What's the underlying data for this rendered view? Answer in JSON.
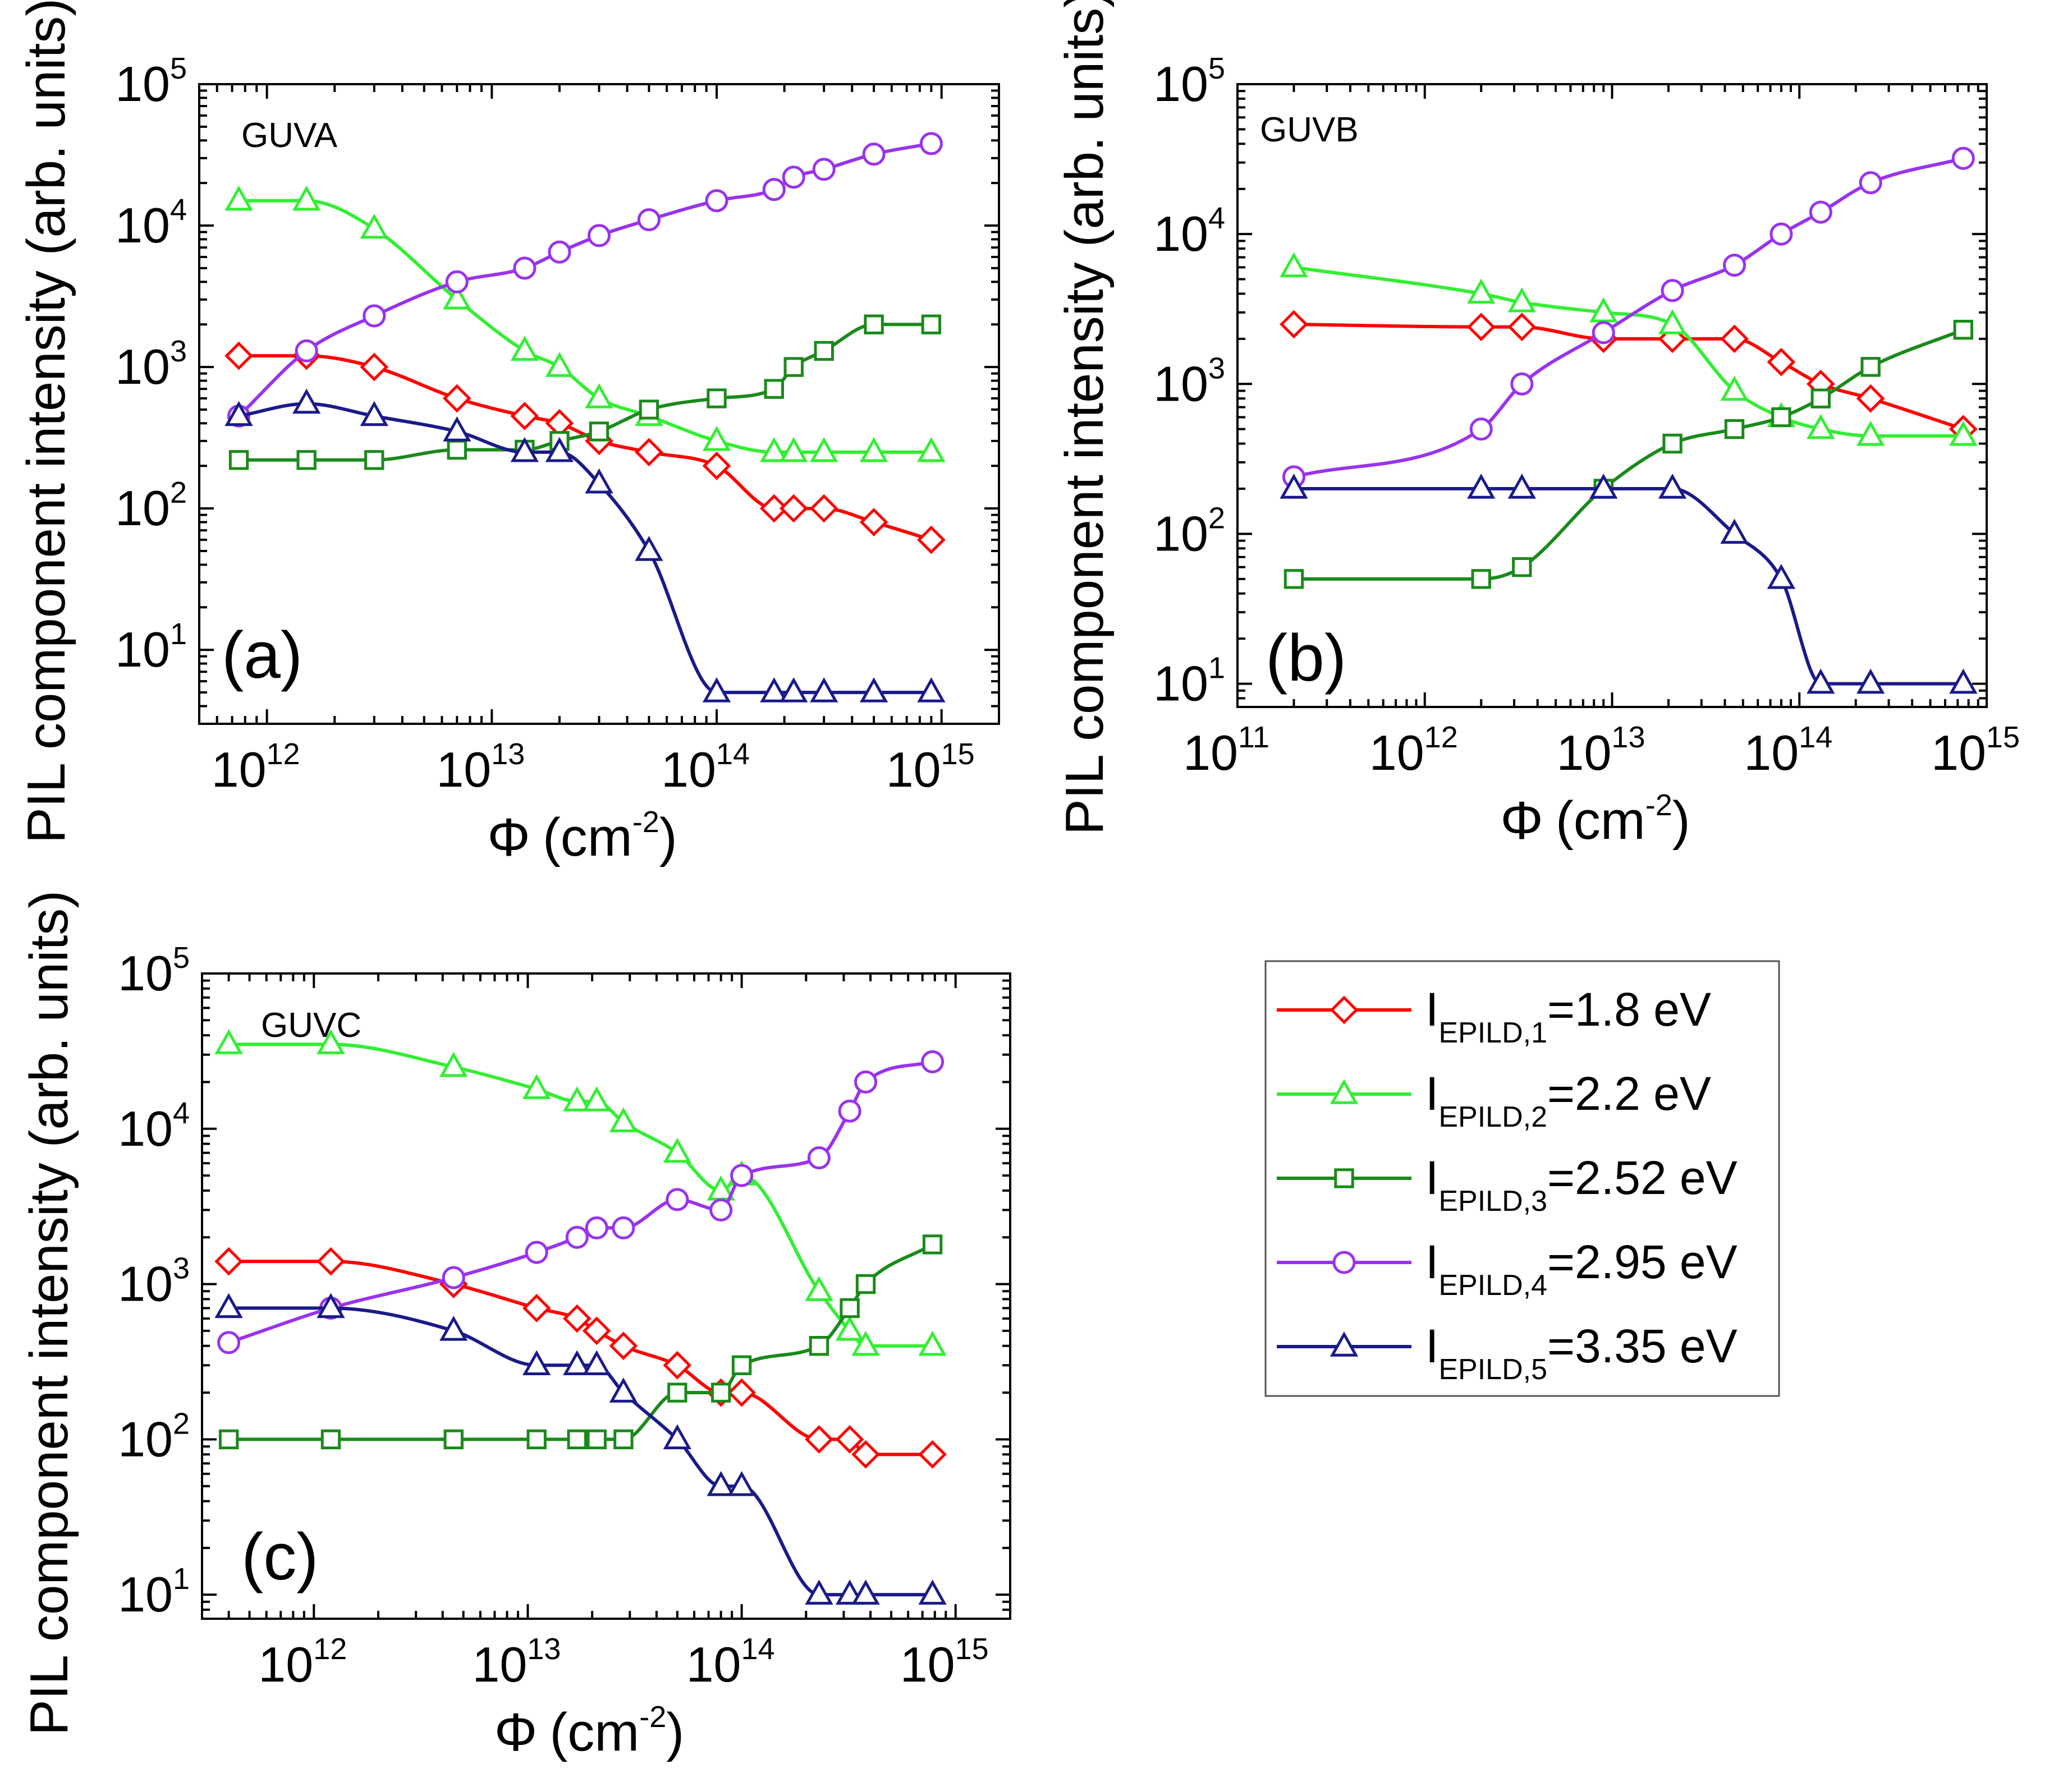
{
  "figure": {
    "y_axis_label": "PIL component intensity (arb. units)",
    "x_axis_symbol": "Φ",
    "x_axis_unit_base": "(cm",
    "x_axis_unit_exp": "-2",
    "x_axis_unit_close": ")"
  },
  "legend": {
    "items": [
      {
        "name": "I",
        "sub": "EPILD,1",
        "value": "=1.8 eV",
        "color": "#ff0000",
        "marker": "diamond"
      },
      {
        "name": "I",
        "sub": "EPILD,2",
        "value": "=2.2 eV",
        "color": "#33ee33",
        "marker": "triangle"
      },
      {
        "name": "I",
        "sub": "EPILD,3",
        "value": "=2.52 eV",
        "color": "#1a8a1a",
        "marker": "square"
      },
      {
        "name": "I",
        "sub": "EPILD,4",
        "value": "=2.95 eV",
        "color": "#9933ee",
        "marker": "circle"
      },
      {
        "name": "I",
        "sub": "EPILD,5",
        "value": "=3.35 eV",
        "color": "#1a1a8a",
        "marker": "triangle"
      }
    ]
  },
  "chart_data": [
    {
      "type": "line",
      "panel_label": "(a)",
      "title": "GUVA",
      "xscale": "log",
      "yscale": "log",
      "xlim": [
        500000000000.0,
        1800000000000000.0
      ],
      "ylim": [
        3,
        100000
      ],
      "xticks": [
        {
          "base": "10",
          "exp": "12"
        },
        {
          "base": "10",
          "exp": "13"
        },
        {
          "base": "10",
          "exp": "14"
        },
        {
          "base": "10",
          "exp": "15"
        }
      ],
      "yticks": [
        {
          "base": "10",
          "exp": "1"
        },
        {
          "base": "10",
          "exp": "2"
        },
        {
          "base": "10",
          "exp": "3"
        },
        {
          "base": "10",
          "exp": "4"
        },
        {
          "base": "10",
          "exp": "5"
        }
      ],
      "xlabel": "Φ (cm-2)",
      "ylabel": "PIL component intensity (arb. units)",
      "series": [
        {
          "name": "IEPILD,1=1.8 eV",
          "x": [
            750000000000.0,
            1500000000000.0,
            3000000000000.0,
            7000000000000.0,
            14000000000000.0,
            20000000000000.0,
            30000000000000.0,
            50000000000000.0,
            100000000000000.0,
            180000000000000.0,
            220000000000000.0,
            300000000000000.0,
            500000000000000.0,
            900000000000000.0
          ],
          "y": [
            1200,
            1200,
            1000,
            600,
            450,
            400,
            300,
            250,
            200,
            100,
            100,
            100,
            80,
            60
          ]
        },
        {
          "name": "IEPILD,2=2.2 eV",
          "x": [
            750000000000.0,
            1500000000000.0,
            3000000000000.0,
            7000000000000.0,
            14000000000000.0,
            20000000000000.0,
            30000000000000.0,
            50000000000000.0,
            100000000000000.0,
            180000000000000.0,
            220000000000000.0,
            300000000000000.0,
            500000000000000.0,
            900000000000000.0
          ],
          "y": [
            15000,
            15000,
            9500,
            3000,
            1300,
            1000,
            600,
            450,
            300,
            250,
            250,
            250,
            250,
            250
          ]
        },
        {
          "name": "IEPILD,3=2.52 eV",
          "x": [
            750000000000.0,
            1500000000000.0,
            3000000000000.0,
            7000000000000.0,
            14000000000000.0,
            20000000000000.0,
            30000000000000.0,
            50000000000000.0,
            100000000000000.0,
            180000000000000.0,
            220000000000000.0,
            300000000000000.0,
            500000000000000.0,
            900000000000000.0
          ],
          "y": [
            220,
            220,
            220,
            260,
            260,
            300,
            350,
            500,
            600,
            700,
            1000,
            1300,
            2000,
            2000
          ]
        },
        {
          "name": "IEPILD,4=2.95 eV",
          "x": [
            750000000000.0,
            1500000000000.0,
            3000000000000.0,
            7000000000000.0,
            14000000000000.0,
            20000000000000.0,
            30000000000000.0,
            50000000000000.0,
            100000000000000.0,
            180000000000000.0,
            220000000000000.0,
            300000000000000.0,
            500000000000000.0,
            900000000000000.0
          ],
          "y": [
            450,
            1300,
            2300,
            4000,
            5000,
            6500,
            8500,
            11000,
            15000,
            18000,
            22000,
            25000,
            32000,
            38000
          ]
        },
        {
          "name": "IEPILD,5=3.35 eV",
          "x": [
            750000000000.0,
            1500000000000.0,
            3000000000000.0,
            7000000000000.0,
            14000000000000.0,
            20000000000000.0,
            30000000000000.0,
            50000000000000.0,
            100000000000000.0,
            180000000000000.0,
            220000000000000.0,
            300000000000000.0,
            500000000000000.0,
            900000000000000.0
          ],
          "y": [
            450,
            550,
            450,
            350,
            250,
            250,
            150,
            50,
            5,
            5,
            5,
            5,
            5,
            5
          ]
        }
      ]
    },
    {
      "type": "line",
      "panel_label": "(b)",
      "title": "GUVB",
      "xscale": "log",
      "yscale": "log",
      "xlim": [
        100000000000.0,
        1000000000000000.0
      ],
      "ylim": [
        7,
        100000
      ],
      "xticks": [
        {
          "base": "10",
          "exp": "11"
        },
        {
          "base": "10",
          "exp": "12"
        },
        {
          "base": "10",
          "exp": "13"
        },
        {
          "base": "10",
          "exp": "14"
        },
        {
          "base": "10",
          "exp": "15"
        }
      ],
      "yticks": [
        {
          "base": "10",
          "exp": "1"
        },
        {
          "base": "10",
          "exp": "2"
        },
        {
          "base": "10",
          "exp": "3"
        },
        {
          "base": "10",
          "exp": "4"
        },
        {
          "base": "10",
          "exp": "5"
        }
      ],
      "xlabel": "Φ (cm-2)",
      "ylabel": "PIL component intensity (arb. units)",
      "series": [
        {
          "name": "IEPILD,1=1.8 eV",
          "x": [
            200000000000.0,
            2000000000000.0,
            3300000000000.0,
            9000000000000.0,
            21000000000000.0,
            45000000000000.0,
            80000000000000.0,
            130000000000000.0,
            240000000000000.0,
            750000000000000.0
          ],
          "y": [
            2500,
            2400,
            2400,
            2000,
            2000,
            2000,
            1400,
            1000,
            800,
            500
          ]
        },
        {
          "name": "IEPILD,2=2.2 eV",
          "x": [
            200000000000.0,
            2000000000000.0,
            3300000000000.0,
            9000000000000.0,
            21000000000000.0,
            45000000000000.0,
            80000000000000.0,
            130000000000000.0,
            240000000000000.0,
            750000000000000.0
          ],
          "y": [
            6000,
            4000,
            3500,
            3000,
            2500,
            900,
            600,
            500,
            450,
            450
          ]
        },
        {
          "name": "IEPILD,3=2.52 eV",
          "x": [
            200000000000.0,
            2000000000000.0,
            3300000000000.0,
            9000000000000.0,
            21000000000000.0,
            45000000000000.0,
            80000000000000.0,
            130000000000000.0,
            240000000000000.0,
            750000000000000.0
          ],
          "y": [
            50,
            50,
            60,
            200,
            400,
            500,
            600,
            800,
            1300,
            2300
          ]
        },
        {
          "name": "IEPILD,4=2.95 eV",
          "x": [
            200000000000.0,
            2000000000000.0,
            3300000000000.0,
            9000000000000.0,
            21000000000000.0,
            45000000000000.0,
            80000000000000.0,
            130000000000000.0,
            240000000000000.0,
            750000000000000.0
          ],
          "y": [
            240,
            500,
            1000,
            2200,
            4200,
            6200,
            10000,
            14000,
            22000,
            32000
          ]
        },
        {
          "name": "IEPILD,5=3.35 eV",
          "x": [
            200000000000.0,
            2000000000000.0,
            3300000000000.0,
            9000000000000.0,
            21000000000000.0,
            45000000000000.0,
            80000000000000.0,
            130000000000000.0,
            240000000000000.0,
            750000000000000.0
          ],
          "y": [
            200,
            200,
            200,
            200,
            200,
            100,
            50,
            10,
            10,
            10
          ]
        }
      ]
    },
    {
      "type": "line",
      "panel_label": "(c)",
      "title": "GUVC",
      "xscale": "log",
      "yscale": "log",
      "xlim": [
        300000000000.0,
        1800000000000000.0
      ],
      "ylim": [
        7,
        100000
      ],
      "xticks": [
        {
          "base": "10",
          "exp": "12"
        },
        {
          "base": "10",
          "exp": "13"
        },
        {
          "base": "10",
          "exp": "14"
        },
        {
          "base": "10",
          "exp": "15"
        }
      ],
      "yticks": [
        {
          "base": "10",
          "exp": "1"
        },
        {
          "base": "10",
          "exp": "2"
        },
        {
          "base": "10",
          "exp": "3"
        },
        {
          "base": "10",
          "exp": "4"
        },
        {
          "base": "10",
          "exp": "5"
        }
      ],
      "xlabel": "Φ (cm-2)",
      "ylabel": "PIL component intensity (arb. units)",
      "series": [
        {
          "name": "IEPILD,1=1.8 eV",
          "x": [
            400000000000.0,
            1200000000000.0,
            4500000000000.0,
            11000000000000.0,
            17000000000000.0,
            21000000000000.0,
            28000000000000.0,
            50000000000000.0,
            80000000000000.0,
            100000000000000.0,
            230000000000000.0,
            320000000000000.0,
            380000000000000.0,
            780000000000000.0
          ],
          "y": [
            1400,
            1400,
            1000,
            700,
            600,
            500,
            400,
            300,
            200,
            200,
            100,
            100,
            80,
            80
          ]
        },
        {
          "name": "IEPILD,2=2.2 eV",
          "x": [
            400000000000.0,
            1200000000000.0,
            4500000000000.0,
            11000000000000.0,
            17000000000000.0,
            21000000000000.0,
            28000000000000.0,
            50000000000000.0,
            80000000000000.0,
            100000000000000.0,
            230000000000000.0,
            320000000000000.0,
            380000000000000.0,
            780000000000000.0
          ],
          "y": [
            35000,
            35000,
            25000,
            18000,
            15000,
            15000,
            11000,
            7000,
            4000,
            5000,
            900,
            500,
            400,
            400
          ]
        },
        {
          "name": "IEPILD,3=2.52 eV",
          "x": [
            400000000000.0,
            1200000000000.0,
            4500000000000.0,
            11000000000000.0,
            17000000000000.0,
            21000000000000.0,
            28000000000000.0,
            50000000000000.0,
            80000000000000.0,
            100000000000000.0,
            230000000000000.0,
            320000000000000.0,
            380000000000000.0,
            780000000000000.0
          ],
          "y": [
            100,
            100,
            100,
            100,
            100,
            100,
            100,
            200,
            200,
            300,
            400,
            700,
            1000,
            1800
          ]
        },
        {
          "name": "IEPILD,4=2.95 eV",
          "x": [
            400000000000.0,
            1200000000000.0,
            4500000000000.0,
            11000000000000.0,
            17000000000000.0,
            21000000000000.0,
            28000000000000.0,
            50000000000000.0,
            80000000000000.0,
            100000000000000.0,
            230000000000000.0,
            320000000000000.0,
            380000000000000.0,
            780000000000000.0
          ],
          "y": [
            420,
            700,
            1100,
            1600,
            2000,
            2300,
            2300,
            3500,
            3000,
            5000,
            6500,
            13000,
            20000,
            27000
          ]
        },
        {
          "name": "IEPILD,5=3.35 eV",
          "x": [
            400000000000.0,
            1200000000000.0,
            4500000000000.0,
            11000000000000.0,
            17000000000000.0,
            21000000000000.0,
            28000000000000.0,
            50000000000000.0,
            80000000000000.0,
            100000000000000.0,
            230000000000000.0,
            320000000000000.0,
            380000000000000.0,
            780000000000000.0
          ],
          "y": [
            700,
            700,
            500,
            300,
            300,
            300,
            200,
            100,
            50,
            50,
            10,
            10,
            10,
            10
          ]
        }
      ]
    }
  ]
}
